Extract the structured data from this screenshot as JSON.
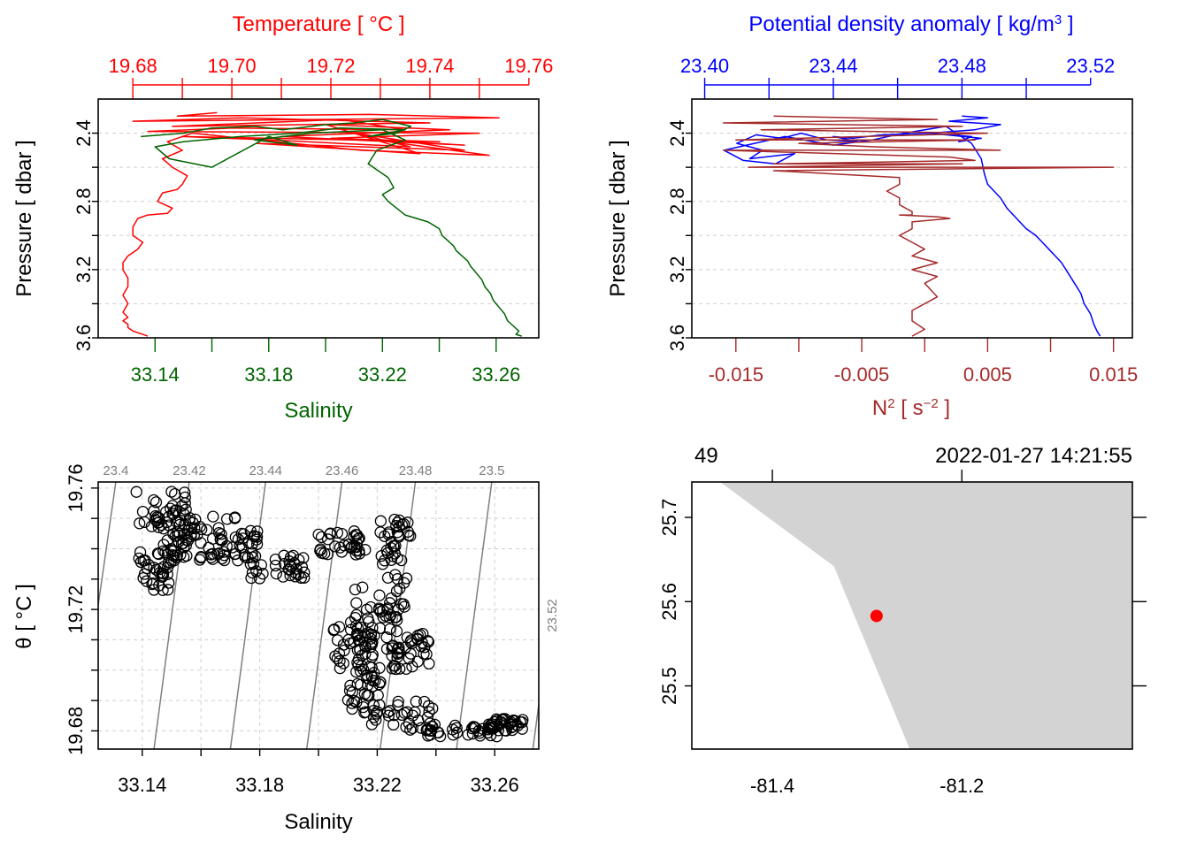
{
  "colors": {
    "temperature": "#ff0000",
    "salinity": "#006400",
    "density": "#0000ff",
    "n2": "#a52a2a",
    "land": "#d3d3d3",
    "station": "#ff0000",
    "isopycnal": "#7f7f7f"
  },
  "chart_data": [
    {
      "id": "ts-profile",
      "type": "line",
      "title": "Temperature [ °C ]",
      "xlabel": "Salinity",
      "ylabel": "Pressure [ dbar ]",
      "ylim": [
        3.6,
        2.2
      ],
      "ytick_labels": [
        "2.4",
        "2.8",
        "3.2",
        "3.6"
      ],
      "top_axis": {
        "label": "Temperature [ °C ]",
        "range": [
          19.673,
          19.762
        ],
        "tick_labels": [
          "19.68",
          "19.70",
          "19.72",
          "19.74",
          "19.76"
        ]
      },
      "bottom_axis": {
        "label": "Salinity",
        "range": [
          33.12,
          33.275
        ],
        "tick_labels": [
          "33.14",
          "33.18",
          "33.22",
          "33.26"
        ]
      },
      "series": [
        {
          "name": "Temperature",
          "axis": "top",
          "x": [
            19.697,
            19.689,
            19.728,
            19.754,
            19.68,
            19.702,
            19.74,
            19.688,
            19.722,
            19.735,
            19.7,
            19.683,
            19.75,
            19.72,
            19.742,
            19.69,
            19.708,
            19.736,
            19.725,
            19.747,
            19.705,
            19.738,
            19.719,
            19.744,
            19.71,
            19.747,
            19.729,
            19.752,
            19.726,
            19.692,
            19.687,
            19.69,
            19.686,
            19.688,
            19.691,
            19.69,
            19.689,
            19.686,
            19.685,
            19.688,
            19.687,
            19.683,
            19.681,
            19.68,
            19.68,
            19.682,
            19.681,
            19.679,
            19.678,
            19.678,
            19.679,
            19.679,
            19.678,
            19.679,
            19.678,
            19.679,
            19.678,
            19.679,
            19.679,
            19.68,
            19.681,
            19.682,
            19.683
          ],
          "y": [
            2.28,
            2.3,
            2.29,
            2.31,
            2.33,
            2.31,
            2.34,
            2.36,
            2.32,
            2.38,
            2.37,
            2.39,
            2.4,
            2.43,
            2.45,
            2.42,
            2.44,
            2.48,
            2.4,
            2.5,
            2.46,
            2.52,
            2.35,
            2.38,
            2.42,
            2.47,
            2.44,
            2.53,
            2.5,
            2.4,
            2.45,
            2.5,
            2.55,
            2.6,
            2.65,
            2.7,
            2.73,
            2.75,
            2.8,
            2.84,
            2.87,
            2.88,
            2.9,
            2.95,
            3.0,
            3.04,
            3.08,
            3.12,
            3.16,
            3.2,
            3.25,
            3.3,
            3.35,
            3.4,
            3.45,
            3.48,
            3.5,
            3.52,
            3.54,
            3.56,
            3.57,
            3.58,
            3.59
          ]
        },
        {
          "name": "Salinity",
          "axis": "bottom",
          "x": [
            33.135,
            33.15,
            33.16,
            33.175,
            33.185,
            33.2,
            33.21,
            33.22,
            33.23,
            33.225,
            33.215,
            33.228,
            33.205,
            33.19,
            33.17,
            33.15,
            33.14,
            33.145,
            33.16,
            33.18,
            33.19,
            33.175,
            33.195,
            33.22,
            33.228,
            33.218,
            33.215,
            33.222,
            33.224,
            33.22,
            33.222,
            33.225,
            33.228,
            33.232,
            33.236,
            33.238,
            33.24,
            33.241,
            33.243,
            33.245,
            33.246,
            33.248,
            33.25,
            33.251,
            33.253,
            33.255,
            33.256,
            33.258,
            33.259,
            33.261,
            33.263,
            33.264,
            33.266,
            33.268,
            33.267,
            33.269
          ],
          "y": [
            2.42,
            2.4,
            2.37,
            2.36,
            2.38,
            2.35,
            2.34,
            2.32,
            2.36,
            2.4,
            2.42,
            2.38,
            2.37,
            2.4,
            2.42,
            2.45,
            2.48,
            2.55,
            2.6,
            2.42,
            2.47,
            2.44,
            2.4,
            2.38,
            2.44,
            2.5,
            2.58,
            2.66,
            2.72,
            2.76,
            2.8,
            2.84,
            2.88,
            2.9,
            2.92,
            2.94,
            2.96,
            3.0,
            3.03,
            3.06,
            3.09,
            3.12,
            3.15,
            3.18,
            3.22,
            3.26,
            3.3,
            3.34,
            3.38,
            3.42,
            3.46,
            3.5,
            3.53,
            3.56,
            3.58,
            3.59
          ]
        }
      ]
    },
    {
      "id": "density-n2-profile",
      "type": "line",
      "title": "Potential density anomaly [ kg/m³ ]",
      "xlabel": "N² [ s⁻² ]",
      "ylabel": "Pressure [ dbar ]",
      "ylim": [
        3.6,
        2.2
      ],
      "ytick_labels": [
        "2.4",
        "2.8",
        "3.2",
        "3.6"
      ],
      "top_axis": {
        "label": "Potential density anomaly [ kg/m³ ]",
        "range": [
          23.396,
          23.533
        ],
        "tick_labels": [
          "23.40",
          "23.44",
          "23.48",
          "23.52"
        ]
      },
      "bottom_axis": {
        "label": "N² [ s⁻² ]",
        "range": [
          -0.0185,
          0.0165
        ],
        "tick_labels": [
          "-0.015",
          "-0.005",
          "0.005",
          "0.015"
        ]
      },
      "series": [
        {
          "name": "Potential density anomaly",
          "axis": "top",
          "x": [
            23.48,
            23.488,
            23.476,
            23.492,
            23.484,
            23.47,
            23.486,
            23.479,
            23.483,
            23.47,
            23.455,
            23.446,
            23.44,
            23.448,
            23.438,
            23.43,
            23.424,
            23.416,
            23.41,
            23.418,
            23.414,
            23.428,
            23.422,
            23.412,
            23.406,
            23.425,
            23.44,
            23.452,
            23.462,
            23.475,
            23.483,
            23.486,
            23.487,
            23.488,
            23.49,
            23.492,
            23.494,
            23.497,
            23.5,
            23.503,
            23.505,
            23.507,
            23.509,
            23.511,
            23.513,
            23.515,
            23.517,
            23.518,
            23.52,
            23.521,
            23.522,
            23.523
          ],
          "y": [
            2.3,
            2.31,
            2.33,
            2.35,
            2.38,
            2.4,
            2.43,
            2.45,
            2.42,
            2.4,
            2.41,
            2.43,
            2.42,
            2.45,
            2.44,
            2.4,
            2.43,
            2.41,
            2.46,
            2.5,
            2.55,
            2.52,
            2.58,
            2.56,
            2.5,
            2.42,
            2.47,
            2.44,
            2.4,
            2.36,
            2.46,
            2.55,
            2.64,
            2.7,
            2.74,
            2.78,
            2.84,
            2.9,
            2.96,
            3.0,
            3.04,
            3.08,
            3.12,
            3.16,
            3.22,
            3.28,
            3.34,
            3.4,
            3.46,
            3.52,
            3.56,
            3.59
          ]
        },
        {
          "name": "N2",
          "axis": "bottom",
          "x": [
            -0.012,
            0.001,
            -0.016,
            0.003,
            -0.013,
            0.005,
            -0.015,
            0.004,
            -0.01,
            -0.004,
            0.006,
            -0.016,
            0.002,
            0.004,
            -0.012,
            0.003,
            -0.014,
            0.004,
            0.015,
            -0.012,
            -0.002,
            -0.002,
            -0.003,
            -0.002,
            -0.002,
            -0.001,
            -0.001,
            -0.002,
            0.001,
            0.002,
            -0.001,
            -0.001,
            -0.002,
            -0.001,
            0.0,
            -0.001,
            0.001,
            -0.001,
            0.001,
            0.0,
            0.001,
            -0.001,
            -0.001,
            0.0,
            -0.001
          ],
          "y": [
            2.3,
            2.32,
            2.34,
            2.36,
            2.38,
            2.4,
            2.44,
            2.44,
            2.46,
            2.48,
            2.5,
            2.5,
            2.54,
            2.56,
            2.58,
            2.58,
            2.6,
            2.6,
            2.6,
            2.62,
            2.66,
            2.7,
            2.74,
            2.78,
            2.82,
            2.86,
            2.88,
            2.88,
            2.89,
            2.9,
            2.92,
            2.96,
            3.0,
            3.04,
            3.08,
            3.12,
            3.16,
            3.2,
            3.24,
            3.28,
            3.36,
            3.44,
            3.5,
            3.55,
            3.59
          ]
        }
      ]
    },
    {
      "id": "ts-diagram",
      "type": "scatter",
      "xlabel": "Salinity",
      "ylabel": "θ [ °C ]",
      "xlim": [
        33.125,
        33.275
      ],
      "ylim": [
        19.674,
        19.762
      ],
      "xtick_labels": [
        "33.14",
        "33.18",
        "33.22",
        "33.26"
      ],
      "ytick_labels": [
        "19.68",
        "19.72",
        "19.76"
      ],
      "isopycnal_labels": [
        "23.4",
        "23.42",
        "23.44",
        "23.46",
        "23.48",
        "23.5",
        "23.52"
      ],
      "isopycnals": [
        {
          "label": "23.4",
          "S_at_T_max": 33.131,
          "S_at_T_min": 33.118
        },
        {
          "label": "23.42",
          "S_at_T_max": 33.156,
          "S_at_T_min": 33.144
        },
        {
          "label": "23.44",
          "S_at_T_max": 33.182,
          "S_at_T_min": 33.17
        },
        {
          "label": "23.46",
          "S_at_T_max": 33.208,
          "S_at_T_min": 33.196
        },
        {
          "label": "23.48",
          "S_at_T_max": 33.233,
          "S_at_T_min": 33.221
        },
        {
          "label": "23.5",
          "S_at_T_max": 33.259,
          "S_at_T_min": 33.247
        },
        {
          "label": "23.52",
          "S_at_T_max": 33.285,
          "S_at_T_min": 33.273
        }
      ],
      "clusters": [
        {
          "S": [
            33.138,
            33.156
          ],
          "T": [
            19.744,
            19.76
          ]
        },
        {
          "S": [
            33.145,
            33.175
          ],
          "T": [
            19.734,
            19.752
          ]
        },
        {
          "S": [
            33.138,
            33.15
          ],
          "T": [
            19.726,
            19.74
          ]
        },
        {
          "S": [
            33.15,
            33.16
          ],
          "T": [
            19.736,
            19.75
          ]
        },
        {
          "S": [
            33.16,
            33.18
          ],
          "T": [
            19.736,
            19.746
          ]
        },
        {
          "S": [
            33.176,
            33.196
          ],
          "T": [
            19.73,
            19.738
          ]
        },
        {
          "S": [
            33.2,
            33.216
          ],
          "T": [
            19.738,
            19.746
          ]
        },
        {
          "S": [
            33.22,
            33.232
          ],
          "T": [
            19.734,
            19.752
          ]
        },
        {
          "S": [
            33.212,
            33.232
          ],
          "T": [
            19.7,
            19.732
          ]
        },
        {
          "S": [
            33.205,
            33.218
          ],
          "T": [
            19.7,
            19.716
          ]
        },
        {
          "S": [
            33.21,
            33.222
          ],
          "T": [
            19.686,
            19.7
          ]
        },
        {
          "S": [
            33.212,
            33.228
          ],
          "T": [
            19.704,
            19.728
          ]
        },
        {
          "S": [
            33.225,
            33.238
          ],
          "T": [
            19.7,
            19.714
          ]
        },
        {
          "S": [
            33.218,
            33.24
          ],
          "T": [
            19.68,
            19.69
          ]
        },
        {
          "S": [
            33.235,
            33.262
          ],
          "T": [
            19.678,
            19.682
          ]
        },
        {
          "S": [
            33.258,
            33.27
          ],
          "T": [
            19.68,
            19.684
          ]
        }
      ]
    },
    {
      "id": "station-map",
      "type": "map",
      "header_left": "49",
      "header_right": "2022-01-27 14:21:55",
      "xlim": [
        -81.485,
        -81.02
      ],
      "ylim": [
        25.425,
        25.742
      ],
      "xtick_labels": [
        "-81.4",
        "-81.2"
      ],
      "ytick_labels": [
        "25.5",
        "25.6",
        "25.7"
      ],
      "coastline_lon": [
        -81.455,
        -81.335,
        -81.255
      ],
      "coastline_lat": [
        25.742,
        25.642,
        25.425
      ],
      "station": {
        "lon": -81.29,
        "lat": 25.583
      }
    }
  ]
}
